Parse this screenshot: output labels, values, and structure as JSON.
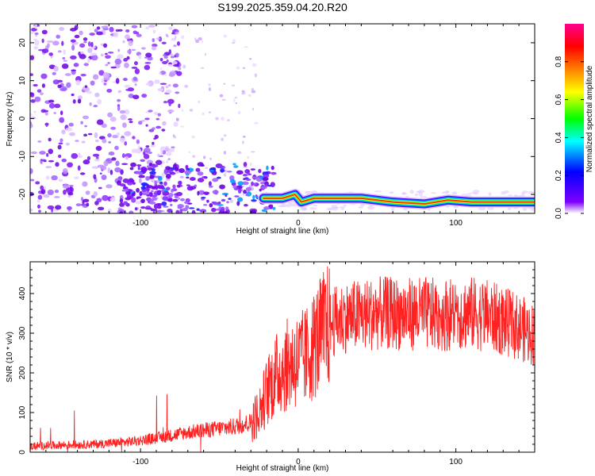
{
  "figure_title": "S199.2025.359.04.20.R20",
  "chart_data": [
    {
      "type": "heatmap",
      "panel": "spectrogram",
      "xlabel": "Height of straight line (km)",
      "ylabel": "Frequency (Hz)",
      "xlim": [
        -170,
        150
      ],
      "ylim": [
        -25,
        25
      ],
      "xticks": [
        -100,
        0,
        100
      ],
      "xtick_labels": [
        "-100",
        "0",
        "100"
      ],
      "yticks": [
        -20,
        -10,
        0,
        10,
        20
      ],
      "ytick_labels": [
        "-20",
        "-10",
        "0",
        "10",
        "20"
      ],
      "grid": false,
      "colorbar": {
        "label": "Normalized spectral amplitude",
        "range": [
          0,
          1
        ],
        "ticks": [
          0,
          0.2,
          0.4,
          0.6,
          0.8
        ],
        "tick_labels": [
          "0.0",
          "0.2",
          "0.4",
          "0.6",
          "0.8"
        ],
        "colors": [
          "#ffffff",
          "#7f00ff",
          "#0000ff",
          "#00ffff",
          "#00ff00",
          "#ffff00",
          "#ff8000",
          "#ff0000",
          "#ff00a0"
        ]
      },
      "tone_trace": {
        "description": "narrow high-amplitude tone",
        "x": [
          -22,
          -10,
          -2,
          2,
          10,
          40,
          60,
          80,
          95,
          110,
          150
        ],
        "y": [
          -21,
          -21,
          -20,
          -22,
          -21,
          -21,
          -22,
          -22.5,
          -21.5,
          -22,
          -22
        ]
      }
    },
    {
      "type": "line",
      "panel": "snr",
      "xlabel": "Height of straight line (km)",
      "ylabel": "SNR (10 * v/v)",
      "xlim": [
        -170,
        150
      ],
      "ylim": [
        0,
        480
      ],
      "xticks": [
        -100,
        0,
        100
      ],
      "xtick_labels": [
        "-100",
        "0",
        "100"
      ],
      "yticks": [
        0,
        100,
        200,
        300,
        400
      ],
      "ytick_labels": [
        "0",
        "100",
        "200",
        "300",
        "400"
      ],
      "grid": false,
      "series": [
        {
          "color": "#ff2020",
          "x": [
            -170,
            -150,
            -130,
            -110,
            -90,
            -70,
            -50,
            -40,
            -30,
            -25,
            -20,
            -15,
            -10,
            -5,
            0,
            5,
            10,
            15,
            20,
            25,
            30,
            40,
            50,
            60,
            70,
            80,
            90,
            100,
            110,
            120,
            130,
            140,
            150
          ],
          "y": [
            15,
            18,
            20,
            25,
            35,
            50,
            60,
            65,
            75,
            100,
            150,
            190,
            210,
            225,
            230,
            240,
            270,
            300,
            320,
            335,
            340,
            345,
            350,
            350,
            348,
            350,
            345,
            350,
            350,
            345,
            330,
            315,
            295
          ]
        }
      ]
    }
  ]
}
